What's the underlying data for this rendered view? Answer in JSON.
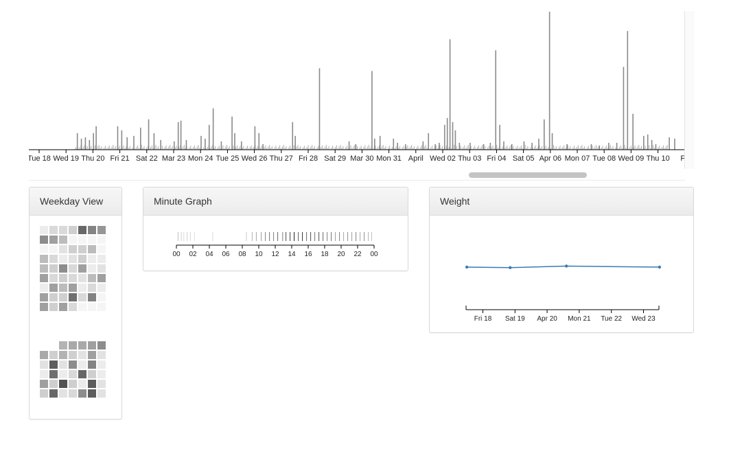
{
  "timeline": {
    "chart_data": {
      "type": "bar",
      "description": "",
      "x_tick_labels": [
        "Tue 18",
        "Wed 19",
        "Thu 20",
        "Fri 21",
        "Sat 22",
        "Mar 23",
        "Mon 24",
        "Tue 25",
        "Wed 26",
        "Thu 27",
        "Fri 28",
        "Sat 29",
        "Mar 30",
        "Mon 31",
        "April",
        "Wed 02",
        "Thu 03",
        "Fri 04",
        "Sat 05",
        "Apr 06",
        "Mon 07",
        "Tue 08",
        "Wed 09",
        "Thu 10",
        "Fri"
      ],
      "bar_color": "#8a8a8a",
      "spikes": [
        {
          "day": 1.4,
          "v": 0.12
        },
        {
          "day": 1.55,
          "v": 0.08
        },
        {
          "day": 1.7,
          "v": 0.09
        },
        {
          "day": 1.85,
          "v": 0.07
        },
        {
          "day": 2.0,
          "v": 0.12
        },
        {
          "day": 2.1,
          "v": 0.17
        },
        {
          "day": 2.9,
          "v": 0.17
        },
        {
          "day": 3.05,
          "v": 0.14
        },
        {
          "day": 3.25,
          "v": 0.09
        },
        {
          "day": 3.5,
          "v": 0.1
        },
        {
          "day": 3.75,
          "v": 0.16
        },
        {
          "day": 4.05,
          "v": 0.22
        },
        {
          "day": 4.25,
          "v": 0.12
        },
        {
          "day": 4.5,
          "v": 0.07
        },
        {
          "day": 5.0,
          "v": 0.06
        },
        {
          "day": 5.15,
          "v": 0.2
        },
        {
          "day": 5.25,
          "v": 0.21
        },
        {
          "day": 5.45,
          "v": 0.07
        },
        {
          "day": 6.0,
          "v": 0.1
        },
        {
          "day": 6.15,
          "v": 0.08
        },
        {
          "day": 6.3,
          "v": 0.18
        },
        {
          "day": 6.45,
          "v": 0.3
        },
        {
          "day": 6.75,
          "v": 0.06
        },
        {
          "day": 7.15,
          "v": 0.24
        },
        {
          "day": 7.25,
          "v": 0.12
        },
        {
          "day": 7.5,
          "v": 0.06
        },
        {
          "day": 8.0,
          "v": 0.17
        },
        {
          "day": 8.15,
          "v": 0.12
        },
        {
          "day": 8.3,
          "v": 0.04
        },
        {
          "day": 9.4,
          "v": 0.2
        },
        {
          "day": 9.5,
          "v": 0.1
        },
        {
          "day": 10.4,
          "v": 0.59
        },
        {
          "day": 11.5,
          "v": 0.06
        },
        {
          "day": 11.75,
          "v": 0.04
        },
        {
          "day": 12.35,
          "v": 0.57
        },
        {
          "day": 12.45,
          "v": 0.08
        },
        {
          "day": 12.65,
          "v": 0.1
        },
        {
          "day": 13.15,
          "v": 0.08
        },
        {
          "day": 13.3,
          "v": 0.05
        },
        {
          "day": 13.6,
          "v": 0.04
        },
        {
          "day": 14.25,
          "v": 0.06
        },
        {
          "day": 14.45,
          "v": 0.12
        },
        {
          "day": 14.7,
          "v": 0.04
        },
        {
          "day": 14.85,
          "v": 0.05
        },
        {
          "day": 15.05,
          "v": 0.18
        },
        {
          "day": 15.15,
          "v": 0.23
        },
        {
          "day": 15.25,
          "v": 0.8
        },
        {
          "day": 15.35,
          "v": 0.2
        },
        {
          "day": 15.45,
          "v": 0.14
        },
        {
          "day": 15.6,
          "v": 0.05
        },
        {
          "day": 16.0,
          "v": 0.05
        },
        {
          "day": 16.5,
          "v": 0.04
        },
        {
          "day": 16.75,
          "v": 0.05
        },
        {
          "day": 16.95,
          "v": 0.72
        },
        {
          "day": 17.1,
          "v": 0.18
        },
        {
          "day": 17.25,
          "v": 0.06
        },
        {
          "day": 17.55,
          "v": 0.04
        },
        {
          "day": 18.0,
          "v": 0.06
        },
        {
          "day": 18.3,
          "v": 0.05
        },
        {
          "day": 18.55,
          "v": 0.08
        },
        {
          "day": 18.75,
          "v": 0.22
        },
        {
          "day": 18.95,
          "v": 1.0
        },
        {
          "day": 19.05,
          "v": 0.12
        },
        {
          "day": 19.6,
          "v": 0.04
        },
        {
          "day": 20.5,
          "v": 0.04
        },
        {
          "day": 20.8,
          "v": 0.03
        },
        {
          "day": 21.15,
          "v": 0.05
        },
        {
          "day": 21.45,
          "v": 0.05
        },
        {
          "day": 21.7,
          "v": 0.6
        },
        {
          "day": 21.85,
          "v": 0.86
        },
        {
          "day": 22.05,
          "v": 0.26
        },
        {
          "day": 22.45,
          "v": 0.1
        },
        {
          "day": 22.6,
          "v": 0.11
        },
        {
          "day": 22.75,
          "v": 0.07
        },
        {
          "day": 22.9,
          "v": 0.04
        },
        {
          "day": 23.4,
          "v": 0.09
        },
        {
          "day": 23.6,
          "v": 0.08
        }
      ],
      "scrollbar": {
        "start_fraction": 0.67,
        "end_fraction": 0.85
      }
    }
  },
  "weekday_view": {
    "title": "Weekday View",
    "chart_data": {
      "type": "heatmap",
      "columns": 7,
      "blocks": [
        {
          "offset": 0,
          "levels": [
            0.05,
            0.15,
            0.15,
            0.2,
            0.75,
            0.6,
            0.5,
            0.55,
            0.45,
            0.3,
            0,
            0,
            0,
            0,
            0,
            0,
            0.1,
            0.2,
            0.2,
            0.3,
            0,
            0.3,
            0.15,
            0.05,
            0.1,
            0.2,
            0.05,
            0.05,
            0.3,
            0.2,
            0.55,
            0.15,
            0.45,
            0.05,
            0.1,
            0.45,
            0.15,
            0.2,
            0.15,
            0.1,
            0.3,
            0.45,
            0.05,
            0.45,
            0.3,
            0.45,
            0.05,
            0.15,
            0.05,
            0.45,
            0.2,
            0.2,
            0.7,
            0.15,
            0.6,
            0,
            0.45,
            0.2,
            0.45,
            0.15,
            0,
            0,
            0
          ]
        },
        {
          "offset": 2,
          "levels": [
            0.35,
            0.4,
            0.4,
            0.45,
            0.55,
            0.4,
            0.2,
            0.35,
            0.2,
            0.1,
            0.45,
            0.1,
            0.1,
            0.8,
            0.1,
            0.55,
            0.05,
            0.6,
            0.05,
            0.05,
            0.7,
            0.05,
            0.15,
            0.75,
            0.2,
            0.05,
            0.45,
            0.2,
            0.85,
            0.2,
            0.05,
            0.8,
            0.1,
            0.2,
            0.75,
            0.1,
            0.15,
            0.55,
            0.8,
            0.1
          ]
        }
      ]
    }
  },
  "minute_graph": {
    "title": "Minute Graph",
    "chart_data": {
      "type": "bar",
      "x_tick_labels": [
        "00",
        "02",
        "04",
        "06",
        "08",
        "10",
        "12",
        "14",
        "16",
        "18",
        "20",
        "22",
        "00"
      ],
      "x_domain": [
        0,
        24
      ],
      "ticks": [
        {
          "h": 0.2,
          "o": 0.25
        },
        {
          "h": 0.6,
          "o": 0.18
        },
        {
          "h": 0.9,
          "o": 0.15
        },
        {
          "h": 1.3,
          "o": 0.18
        },
        {
          "h": 1.7,
          "o": 0.15
        },
        {
          "h": 2.2,
          "o": 0.12
        },
        {
          "h": 4.4,
          "o": 0.15
        },
        {
          "h": 8.5,
          "o": 0.2
        },
        {
          "h": 9.2,
          "o": 0.3
        },
        {
          "h": 9.7,
          "o": 0.35
        },
        {
          "h": 10.3,
          "o": 0.4
        },
        {
          "h": 10.8,
          "o": 0.5
        },
        {
          "h": 11.3,
          "o": 0.55
        },
        {
          "h": 11.8,
          "o": 0.5
        },
        {
          "h": 12.3,
          "o": 0.6
        },
        {
          "h": 12.9,
          "o": 0.5
        },
        {
          "h": 13.3,
          "o": 0.7
        },
        {
          "h": 13.8,
          "o": 0.75
        },
        {
          "h": 14.3,
          "o": 0.9
        },
        {
          "h": 14.8,
          "o": 0.65
        },
        {
          "h": 15.3,
          "o": 0.8
        },
        {
          "h": 15.8,
          "o": 0.6
        },
        {
          "h": 16.3,
          "o": 0.7
        },
        {
          "h": 16.8,
          "o": 0.55
        },
        {
          "h": 17.3,
          "o": 0.7
        },
        {
          "h": 17.8,
          "o": 0.6
        },
        {
          "h": 18.3,
          "o": 0.5
        },
        {
          "h": 18.8,
          "o": 0.55
        },
        {
          "h": 19.3,
          "o": 0.4
        },
        {
          "h": 19.8,
          "o": 0.5
        },
        {
          "h": 20.3,
          "o": 0.35
        },
        {
          "h": 20.8,
          "o": 0.45
        },
        {
          "h": 21.3,
          "o": 0.4
        },
        {
          "h": 21.8,
          "o": 0.5
        },
        {
          "h": 22.3,
          "o": 0.35
        },
        {
          "h": 22.8,
          "o": 0.45
        },
        {
          "h": 23.3,
          "o": 0.3
        },
        {
          "h": 23.7,
          "o": 0.25
        }
      ]
    }
  },
  "weight": {
    "title": "Weight",
    "chart_data": {
      "type": "line",
      "x_tick_labels": [
        "Fri 18",
        "Sat 19",
        "Apr 20",
        "Mon 21",
        "Tue 22",
        "Wed 23"
      ],
      "line_color": "#3a7ab4",
      "points": [
        {
          "day": 17.0,
          "v": 0.45
        },
        {
          "day": 18.35,
          "v": 0.4
        },
        {
          "day": 20.1,
          "v": 0.55
        },
        {
          "day": 23.0,
          "v": 0.45
        }
      ]
    }
  }
}
